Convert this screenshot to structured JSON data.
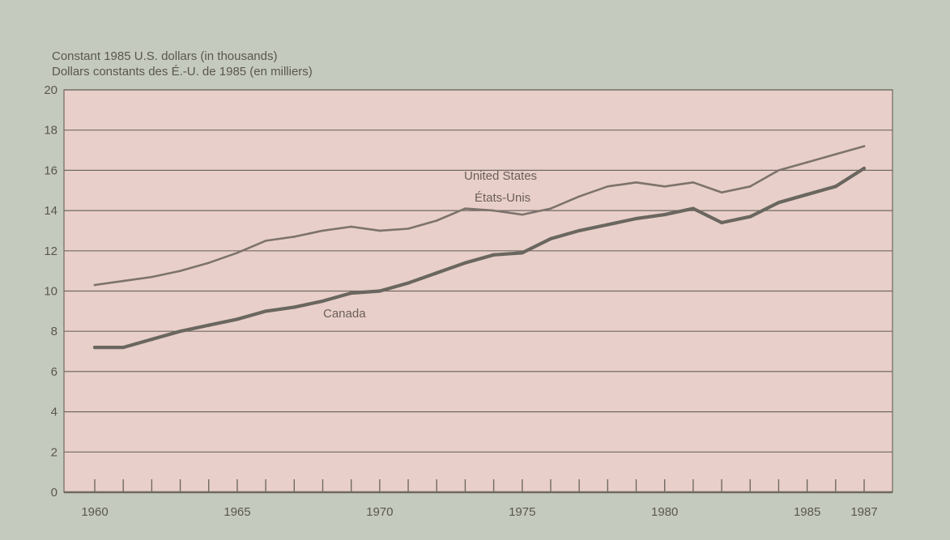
{
  "chart_data": {
    "type": "line",
    "ylabel": [
      "Constant 1985 U.S. dollars (in thousands)",
      "Dollars constants des É.-U. de 1985 (en milliers)"
    ],
    "xlabel": "",
    "ylim": [
      0,
      20
    ],
    "xlim": [
      1960,
      1987
    ],
    "yticks": [
      0,
      2,
      4,
      6,
      8,
      10,
      12,
      14,
      16,
      18,
      20
    ],
    "xtick_labels": [
      {
        "value": 1960,
        "label": "1960"
      },
      {
        "value": 1965,
        "label": "1965"
      },
      {
        "value": 1970,
        "label": "1970"
      },
      {
        "value": 1975,
        "label": "1975"
      },
      {
        "value": 1980,
        "label": "1980"
      },
      {
        "value": 1985,
        "label": "1985"
      },
      {
        "value": 1987,
        "label": "1987"
      }
    ],
    "grid": "horizontal",
    "colors": {
      "plot_background": "#e9cfc9",
      "page_background": "#c5cabe",
      "grid": "#6f6a62",
      "united_states": "#7c736c",
      "canada": "#6a6660"
    },
    "x": [
      1960,
      1961,
      1962,
      1963,
      1964,
      1965,
      1966,
      1967,
      1968,
      1969,
      1970,
      1971,
      1972,
      1973,
      1974,
      1975,
      1976,
      1977,
      1978,
      1979,
      1980,
      1981,
      1982,
      1983,
      1984,
      1985,
      1986,
      1987
    ],
    "series": [
      {
        "name": "United States / États-Unis",
        "label_lines": [
          "United States",
          "États-Unis"
        ],
        "values": [
          10.3,
          10.5,
          10.7,
          11.0,
          11.4,
          11.9,
          12.5,
          12.7,
          13.0,
          13.2,
          13.0,
          13.1,
          13.5,
          14.1,
          14.0,
          13.8,
          14.1,
          14.7,
          15.2,
          15.4,
          15.2,
          15.4,
          14.9,
          15.2,
          16.0,
          16.4,
          16.8,
          17.2
        ]
      },
      {
        "name": "Canada",
        "label_lines": [
          "Canada"
        ],
        "values": [
          7.2,
          7.2,
          7.6,
          8.0,
          8.3,
          8.6,
          9.0,
          9.2,
          9.5,
          9.9,
          10.0,
          10.4,
          10.9,
          11.4,
          11.8,
          11.9,
          12.6,
          13.0,
          13.3,
          13.6,
          13.8,
          14.1,
          13.4,
          13.7,
          14.4,
          14.8,
          15.2,
          16.1
        ]
      }
    ]
  }
}
